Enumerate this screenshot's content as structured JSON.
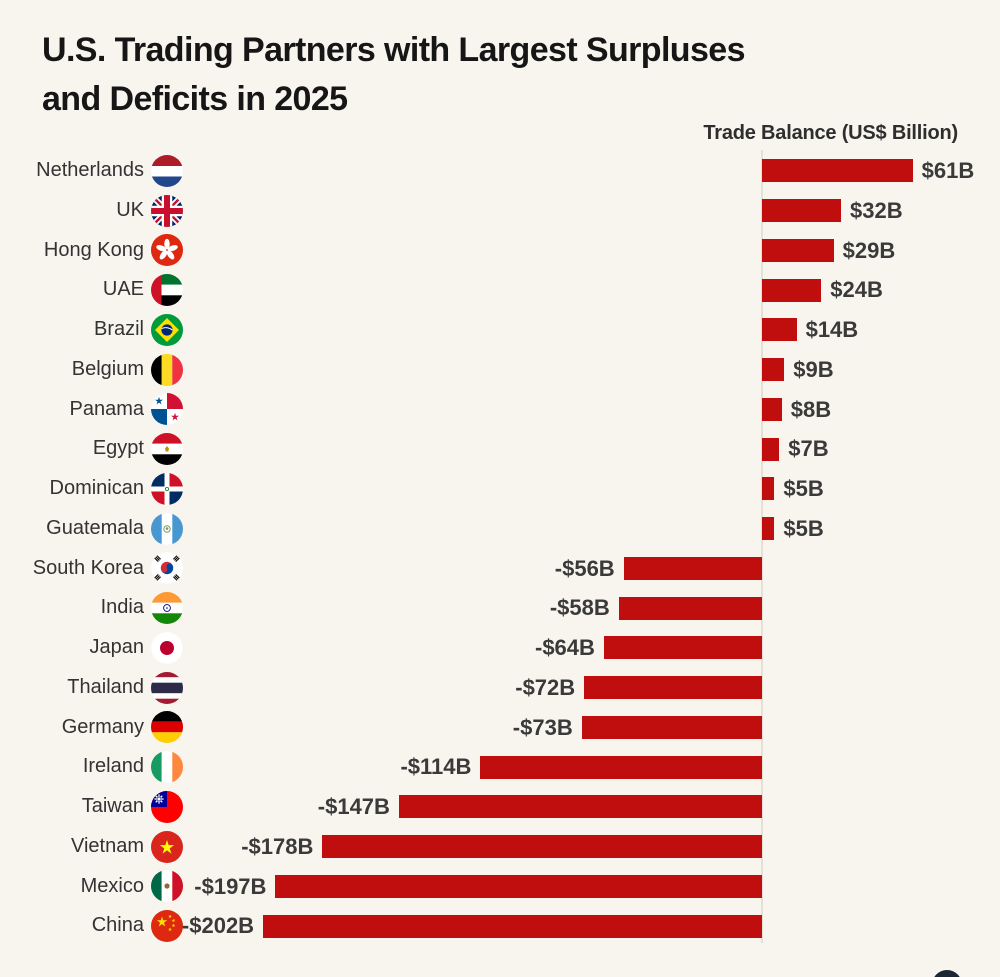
{
  "page": {
    "background_color": "#f8f5ee"
  },
  "header": {
    "title_line1": "U.S. Trading Partners with Largest Surpluses",
    "title_line2": "and Deficits in 2025",
    "axis_label": "Trade Balance (US$ Billion)"
  },
  "chart_data": {
    "type": "bar",
    "orientation": "horizontal",
    "title": "U.S. Trading Partners with Largest Surpluses and Deficits in 2025",
    "xlabel": "Trade Balance (US$ Billion)",
    "ylabel": "",
    "bar_color": "#c00e0e",
    "baseline": 0,
    "xlim": [
      -210,
      80
    ],
    "grid": false,
    "legend": "none",
    "categories": [
      "Netherlands",
      "UK",
      "Hong Kong",
      "UAE",
      "Brazil",
      "Belgium",
      "Panama",
      "Egypt",
      "Dominican",
      "Guatemala",
      "South Korea",
      "India",
      "Japan",
      "Thailand",
      "Germany",
      "Ireland",
      "Taiwan",
      "Vietnam",
      "Mexico",
      "China"
    ],
    "values": [
      61,
      32,
      29,
      24,
      14,
      9,
      8,
      7,
      5,
      5,
      -56,
      -58,
      -64,
      -72,
      -73,
      -114,
      -147,
      -178,
      -197,
      -202
    ],
    "value_labels": [
      "$61B",
      "$32B",
      "$29B",
      "$24B",
      "$14B",
      "$9B",
      "$8B",
      "$7B",
      "$5B",
      "$5B",
      "-$56B",
      "-$58B",
      "-$64B",
      "-$72B",
      "-$73B",
      "-$114B",
      "-$147B",
      "-$178B",
      "-$197B",
      "-$202B"
    ],
    "flags": [
      "flag-netherlands",
      "flag-uk",
      "flag-hong-kong",
      "flag-uae",
      "flag-brazil",
      "flag-belgium",
      "flag-panama",
      "flag-egypt",
      "flag-dominican",
      "flag-guatemala",
      "flag-south-korea",
      "flag-india",
      "flag-japan",
      "flag-thailand",
      "flag-germany",
      "flag-ireland",
      "flag-taiwan",
      "flag-vietnam",
      "flag-mexico",
      "flag-china"
    ]
  },
  "footer": {
    "logo": "partial-logo-circle"
  }
}
